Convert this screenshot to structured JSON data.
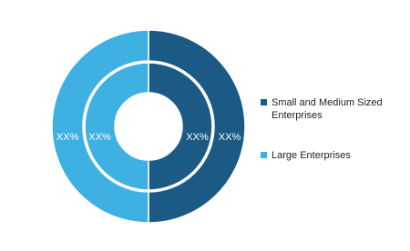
{
  "chart_data": {
    "type": "donut",
    "categories": [
      "Small and Medium Sized Enterprises",
      "Large Enterprises"
    ],
    "colors": [
      "#1b5a84",
      "#3fb0e2"
    ],
    "rings": [
      {
        "values": [
          50,
          50
        ],
        "value_labels": [
          "XX%",
          "XX%"
        ]
      },
      {
        "values": [
          50,
          50
        ],
        "value_labels": [
          "XX%",
          "XX%"
        ]
      }
    ]
  }
}
